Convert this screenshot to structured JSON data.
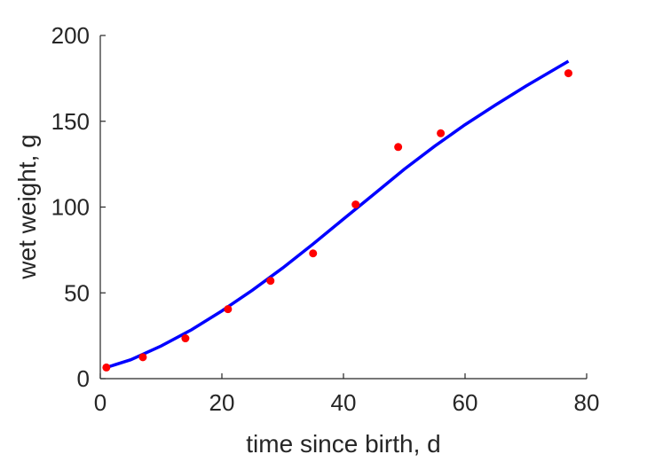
{
  "chart_data": {
    "type": "scatter",
    "xlabel": "time since birth, d",
    "ylabel": "wet weight, g",
    "xlim": [
      0,
      80
    ],
    "ylim": [
      0,
      200
    ],
    "xticks": [
      0,
      20,
      40,
      60,
      80
    ],
    "yticks": [
      0,
      50,
      100,
      150,
      200
    ],
    "grid": false,
    "series": [
      {
        "type": "scatter",
        "color": "#ff0000",
        "points": [
          {
            "x": 1,
            "y": 6.5
          },
          {
            "x": 7,
            "y": 12.5
          },
          {
            "x": 14,
            "y": 23.5
          },
          {
            "x": 21,
            "y": 40.5
          },
          {
            "x": 28,
            "y": 57
          },
          {
            "x": 35,
            "y": 73
          },
          {
            "x": 42,
            "y": 101.5
          },
          {
            "x": 49,
            "y": 135
          },
          {
            "x": 56,
            "y": 143
          },
          {
            "x": 77,
            "y": 178
          }
        ]
      },
      {
        "type": "line",
        "color": "#0000ff",
        "points": [
          {
            "x": 1,
            "y": 6.5
          },
          {
            "x": 5,
            "y": 11
          },
          {
            "x": 10,
            "y": 19
          },
          {
            "x": 15,
            "y": 28.5
          },
          {
            "x": 20,
            "y": 39.5
          },
          {
            "x": 25,
            "y": 51.5
          },
          {
            "x": 30,
            "y": 64.5
          },
          {
            "x": 35,
            "y": 78.5
          },
          {
            "x": 40,
            "y": 93
          },
          {
            "x": 45,
            "y": 107.5
          },
          {
            "x": 50,
            "y": 122
          },
          {
            "x": 55,
            "y": 135.5
          },
          {
            "x": 60,
            "y": 148
          },
          {
            "x": 65,
            "y": 159.5
          },
          {
            "x": 70,
            "y": 170.5
          },
          {
            "x": 77,
            "y": 185
          }
        ]
      }
    ]
  }
}
